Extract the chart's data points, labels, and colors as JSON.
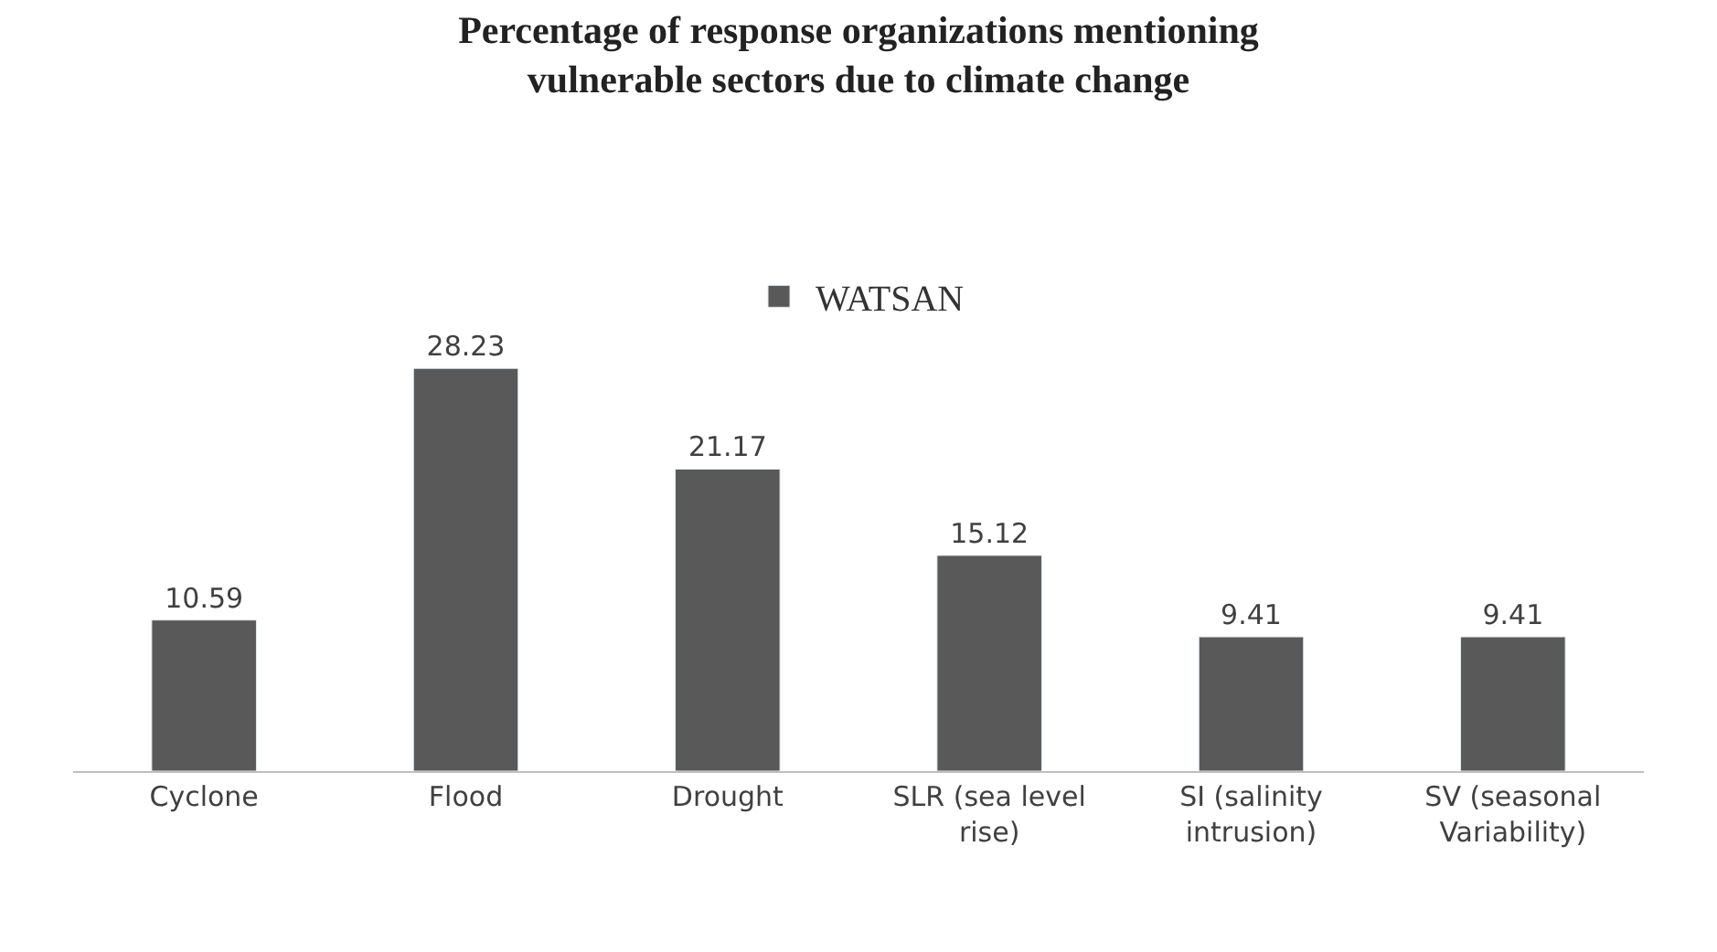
{
  "chart_data": {
    "type": "bar",
    "title": "Percentage of response organizations mentioning vulnerable sectors due to climate change",
    "categories": [
      "Cyclone",
      "Flood",
      "Drought",
      "SLR (sea level rise)",
      "SI (salinity intrusion)",
      "SV (seasonal Variability)"
    ],
    "series": [
      {
        "name": "WATSAN",
        "color": "#595959",
        "values": [
          10.59,
          28.23,
          21.17,
          15.12,
          9.41,
          9.41
        ]
      }
    ],
    "data_labels": true,
    "legend": "top"
  }
}
